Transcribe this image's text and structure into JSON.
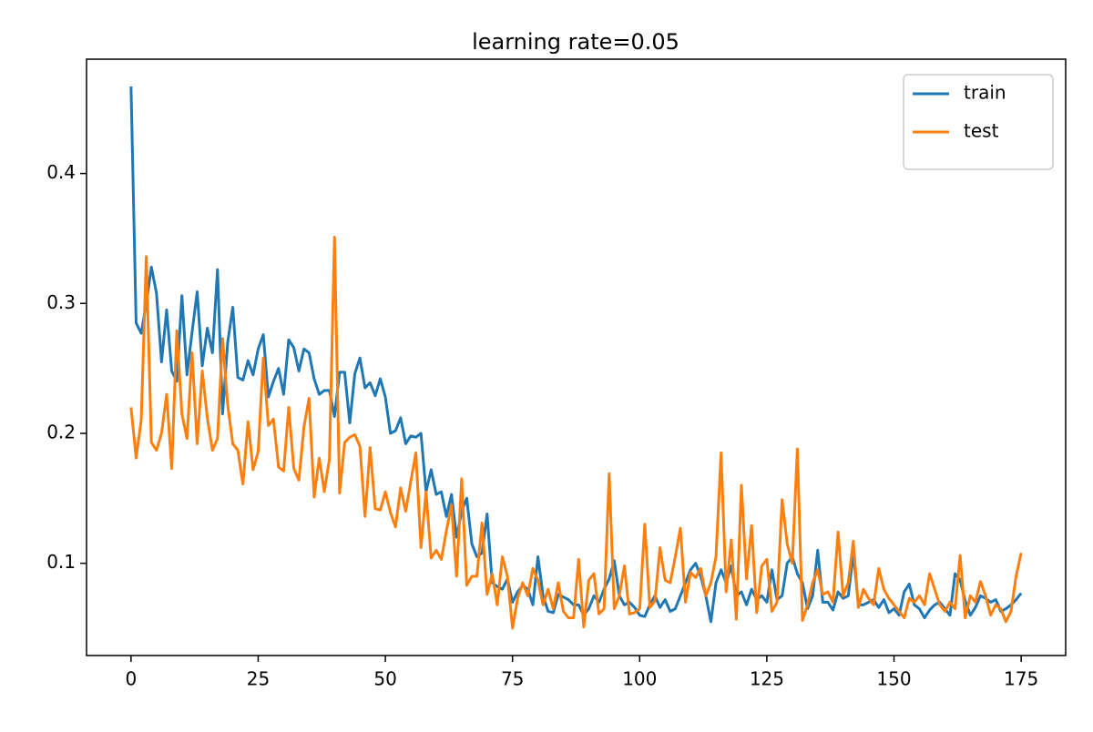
{
  "chart_data": {
    "type": "line",
    "title": "learning rate=0.05",
    "x": [
      0,
      1,
      2,
      3,
      4,
      5,
      6,
      7,
      8,
      9,
      10,
      11,
      12,
      13,
      14,
      15,
      16,
      17,
      18,
      19,
      20,
      21,
      22,
      23,
      24,
      25,
      26,
      27,
      28,
      29,
      30,
      31,
      32,
      33,
      34,
      35,
      36,
      37,
      38,
      39,
      40,
      41,
      42,
      43,
      44,
      45,
      46,
      47,
      48,
      49,
      50,
      51,
      52,
      53,
      54,
      55,
      56,
      57,
      58,
      59,
      60,
      61,
      62,
      63,
      64,
      65,
      66,
      67,
      68,
      69,
      70,
      71,
      72,
      73,
      74,
      75,
      76,
      77,
      78,
      79,
      80,
      81,
      82,
      83,
      84,
      85,
      86,
      87,
      88,
      89,
      90,
      91,
      92,
      93,
      94,
      95,
      96,
      97,
      98,
      99,
      100,
      101,
      102,
      103,
      104,
      105,
      106,
      107,
      108,
      109,
      110,
      111,
      112,
      113,
      114,
      115,
      116,
      117,
      118,
      119,
      120,
      121,
      122,
      123,
      124,
      125,
      126,
      127,
      128,
      129,
      130,
      131,
      132,
      133,
      134,
      135,
      136,
      137,
      138,
      139,
      140,
      141,
      142,
      143,
      144,
      145,
      146,
      147,
      148,
      149,
      150,
      151,
      152,
      153,
      154,
      155,
      156,
      157,
      158,
      159,
      160,
      161,
      162,
      163,
      164,
      165,
      166,
      167,
      168,
      169,
      170,
      171,
      172,
      173,
      174,
      175
    ],
    "series": [
      {
        "name": "train",
        "color": "#1f77b4",
        "values": [
          0.467,
          0.285,
          0.277,
          0.3,
          0.328,
          0.308,
          0.255,
          0.295,
          0.248,
          0.24,
          0.306,
          0.245,
          0.278,
          0.309,
          0.252,
          0.281,
          0.262,
          0.326,
          0.215,
          0.27,
          0.297,
          0.243,
          0.241,
          0.256,
          0.245,
          0.265,
          0.276,
          0.228,
          0.24,
          0.25,
          0.23,
          0.272,
          0.266,
          0.248,
          0.265,
          0.262,
          0.242,
          0.23,
          0.233,
          0.233,
          0.213,
          0.247,
          0.247,
          0.208,
          0.246,
          0.258,
          0.235,
          0.239,
          0.229,
          0.242,
          0.228,
          0.2,
          0.202,
          0.212,
          0.192,
          0.198,
          0.197,
          0.2,
          0.155,
          0.172,
          0.153,
          0.155,
          0.136,
          0.153,
          0.12,
          0.14,
          0.15,
          0.115,
          0.105,
          0.108,
          0.138,
          0.085,
          0.082,
          0.08,
          0.088,
          0.07,
          0.078,
          0.083,
          0.08,
          0.068,
          0.105,
          0.075,
          0.063,
          0.062,
          0.076,
          0.074,
          0.072,
          0.068,
          0.068,
          0.06,
          0.065,
          0.075,
          0.07,
          0.08,
          0.088,
          0.102,
          0.075,
          0.068,
          0.07,
          0.066,
          0.06,
          0.059,
          0.068,
          0.075,
          0.066,
          0.072,
          0.063,
          0.065,
          0.075,
          0.085,
          0.095,
          0.1,
          0.09,
          0.075,
          0.055,
          0.085,
          0.095,
          0.085,
          0.098,
          0.075,
          0.078,
          0.068,
          0.08,
          0.072,
          0.075,
          0.07,
          0.095,
          0.072,
          0.075,
          0.1,
          0.105,
          0.092,
          0.085,
          0.065,
          0.075,
          0.11,
          0.07,
          0.07,
          0.064,
          0.078,
          0.073,
          0.075,
          0.108,
          0.068,
          0.068,
          0.07,
          0.072,
          0.066,
          0.072,
          0.062,
          0.065,
          0.06,
          0.078,
          0.084,
          0.068,
          0.065,
          0.058,
          0.064,
          0.068,
          0.07,
          0.065,
          0.06,
          0.092,
          0.087,
          0.071,
          0.06,
          0.066,
          0.075,
          0.073,
          0.07,
          0.072,
          0.063,
          0.065,
          0.068,
          0.072,
          0.077
        ]
      },
      {
        "name": "test",
        "color": "#ff7f0e",
        "values": [
          0.22,
          0.181,
          0.21,
          0.336,
          0.193,
          0.187,
          0.2,
          0.23,
          0.173,
          0.279,
          0.215,
          0.196,
          0.262,
          0.192,
          0.248,
          0.212,
          0.187,
          0.196,
          0.273,
          0.222,
          0.192,
          0.187,
          0.161,
          0.209,
          0.172,
          0.186,
          0.258,
          0.206,
          0.211,
          0.174,
          0.171,
          0.22,
          0.173,
          0.164,
          0.205,
          0.227,
          0.151,
          0.181,
          0.155,
          0.18,
          0.351,
          0.154,
          0.193,
          0.197,
          0.199,
          0.19,
          0.136,
          0.189,
          0.142,
          0.141,
          0.155,
          0.139,
          0.128,
          0.158,
          0.14,
          0.163,
          0.185,
          0.112,
          0.155,
          0.104,
          0.11,
          0.103,
          0.125,
          0.145,
          0.09,
          0.165,
          0.083,
          0.09,
          0.09,
          0.131,
          0.076,
          0.092,
          0.068,
          0.105,
          0.09,
          0.05,
          0.073,
          0.085,
          0.075,
          0.096,
          0.087,
          0.068,
          0.08,
          0.065,
          0.085,
          0.063,
          0.058,
          0.058,
          0.103,
          0.051,
          0.087,
          0.092,
          0.061,
          0.065,
          0.169,
          0.065,
          0.075,
          0.098,
          0.061,
          0.062,
          0.065,
          0.13,
          0.066,
          0.071,
          0.112,
          0.087,
          0.085,
          0.105,
          0.127,
          0.07,
          0.093,
          0.089,
          0.096,
          0.075,
          0.085,
          0.105,
          0.185,
          0.078,
          0.118,
          0.057,
          0.16,
          0.088,
          0.129,
          0.062,
          0.098,
          0.103,
          0.063,
          0.07,
          0.149,
          0.115,
          0.1,
          0.188,
          0.056,
          0.068,
          0.085,
          0.095,
          0.076,
          0.078,
          0.07,
          0.124,
          0.075,
          0.085,
          0.117,
          0.066,
          0.08,
          0.073,
          0.068,
          0.096,
          0.08,
          0.073,
          0.068,
          0.063,
          0.058,
          0.073,
          0.07,
          0.075,
          0.068,
          0.092,
          0.08,
          0.068,
          0.063,
          0.07,
          0.065,
          0.106,
          0.058,
          0.075,
          0.07,
          0.086,
          0.075,
          0.06,
          0.068,
          0.065,
          0.055,
          0.063,
          0.09,
          0.108
        ]
      }
    ],
    "xlim": [
      -8.75,
      183.75
    ],
    "xticks": [
      0,
      25,
      50,
      75,
      100,
      125,
      150,
      175
    ],
    "ylim": [
      0.029,
      0.488
    ],
    "yticks": [
      0.1,
      0.2,
      0.3,
      0.4
    ],
    "legend": "upper right",
    "grid": false
  }
}
